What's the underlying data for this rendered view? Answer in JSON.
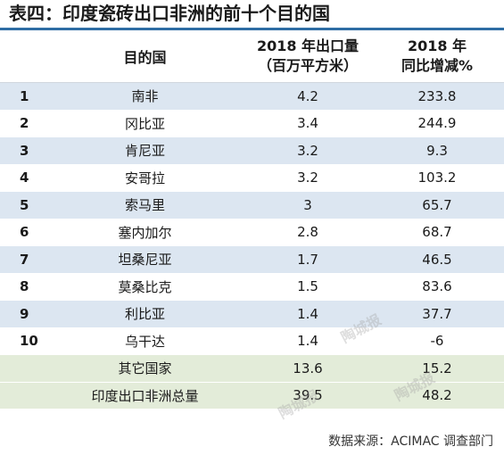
{
  "title": "表四：印度瓷砖出口非洲的前十个目的国",
  "headers": {
    "rank": "",
    "country": "目的国",
    "export_line1": "2018 年出口量",
    "export_line2": "（百万平方米）",
    "growth_line1": "2018 年",
    "growth_line2": "同比增减%"
  },
  "rows": [
    {
      "rank": "1",
      "country": "南非",
      "export": "4.2",
      "growth": "233.8"
    },
    {
      "rank": "2",
      "country": "冈比亚",
      "export": "3.4",
      "growth": "244.9"
    },
    {
      "rank": "3",
      "country": "肯尼亚",
      "export": "3.2",
      "growth": "9.3"
    },
    {
      "rank": "4",
      "country": "安哥拉",
      "export": "3.2",
      "growth": "103.2"
    },
    {
      "rank": "5",
      "country": "索马里",
      "export": "3",
      "growth": "65.7"
    },
    {
      "rank": "6",
      "country": "塞内加尔",
      "export": "2.8",
      "growth": "68.7"
    },
    {
      "rank": "7",
      "country": "坦桑尼亚",
      "export": "1.7",
      "growth": "46.5"
    },
    {
      "rank": "8",
      "country": "莫桑比克",
      "export": "1.5",
      "growth": "83.6"
    },
    {
      "rank": "9",
      "country": "利比亚",
      "export": "1.4",
      "growth": "37.7"
    },
    {
      "rank": "10",
      "country": "乌干达",
      "export": "1.4",
      "growth": "-6"
    },
    {
      "rank": "",
      "country": "其它国家",
      "export": "13.6",
      "growth": "15.2"
    },
    {
      "rank": "",
      "country": "印度出口非洲总量",
      "export": "39.5",
      "growth": "48.2"
    }
  ],
  "footer": "数据来源：ACIMAC 调查部门",
  "watermark": "陶城报",
  "colors": {
    "accent_line": "#2e6da4",
    "row_blue": "#dce6f1",
    "row_green": "#e3ecd9"
  }
}
